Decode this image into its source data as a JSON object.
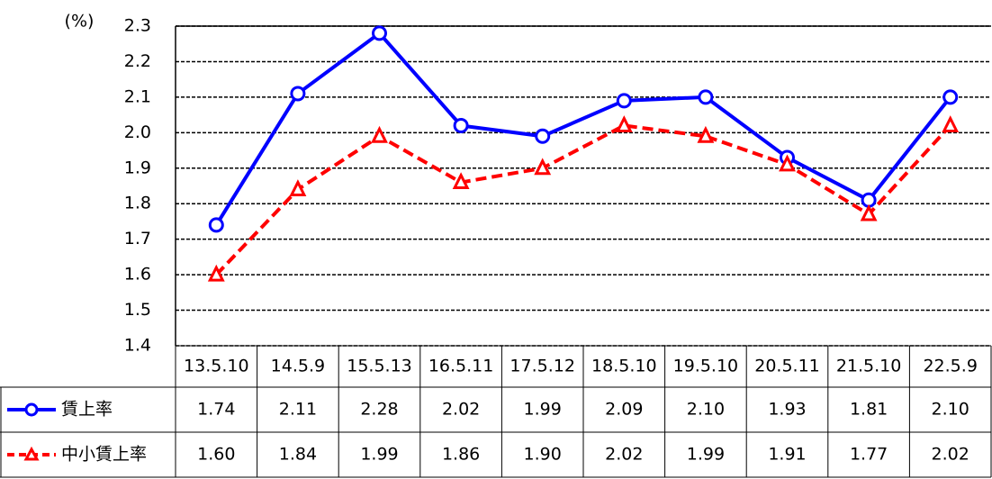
{
  "chart_data": {
    "type": "line",
    "ylabel": "(%)",
    "categories": [
      "13.5.10",
      "14.5.9",
      "15.5.13",
      "16.5.11",
      "17.5.12",
      "18.5.10",
      "19.5.10",
      "20.5.11",
      "21.5.10",
      "22.5.9"
    ],
    "series": [
      {
        "name": "賃上率",
        "color": "#0000ff",
        "marker": "circle",
        "dashed": false,
        "values": [
          1.74,
          2.11,
          2.28,
          2.02,
          1.99,
          2.09,
          2.1,
          1.93,
          1.81,
          2.1
        ],
        "value_labels": [
          "1.74",
          "2.11",
          "2.28",
          "2.02",
          "1.99",
          "2.09",
          "2.10",
          "1.93",
          "1.81",
          "2.10"
        ]
      },
      {
        "name": "中小賃上率",
        "color": "#ff0000",
        "marker": "triangle",
        "dashed": true,
        "values": [
          1.6,
          1.84,
          1.99,
          1.86,
          1.9,
          2.02,
          1.99,
          1.91,
          1.77,
          2.02
        ],
        "value_labels": [
          "1.60",
          "1.84",
          "1.99",
          "1.86",
          "1.90",
          "2.02",
          "1.99",
          "1.91",
          "1.77",
          "2.02"
        ]
      }
    ],
    "ylim": [
      1.4,
      2.3
    ],
    "yticks": [
      1.4,
      1.5,
      1.6,
      1.7,
      1.8,
      1.9,
      {
        "value": 2,
        "label": "2.0"
      },
      2.1,
      2.2,
      2.3
    ],
    "grid": true
  }
}
